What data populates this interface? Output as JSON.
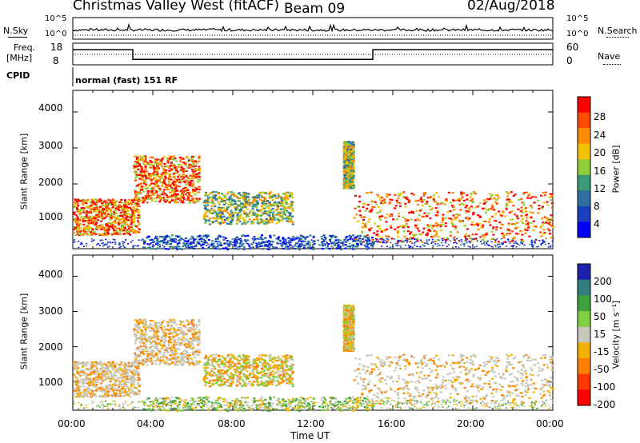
{
  "header": {
    "station": "Christmas Valley West (fitACF)",
    "beam": "Beam 09",
    "date": "02/Aug/2018"
  },
  "panel_labels": {
    "nsky": "N.Sky",
    "nsky_ticks": [
      "10^5",
      "10^0"
    ],
    "nsearch": "N.Search",
    "nsearch_ticks": [
      "10^5",
      "10^0"
    ],
    "freq": "Freq.",
    "freq_unit": "[MHz]",
    "freq_ticks": [
      "18",
      "8"
    ],
    "nave": "Nave",
    "nave_ticks": [
      "60",
      "0"
    ],
    "cpid": "CPID",
    "cpid_text": "normal (fast) 151 RF"
  },
  "colorbars": {
    "power": {
      "label": "Power [dB]",
      "ticks": [
        "28",
        "24",
        "20",
        "16",
        "12",
        "8",
        "4"
      ],
      "colors": [
        "#ff0000",
        "#ff4a00",
        "#ff8c00",
        "#f2c200",
        "#8fcf3c",
        "#3c9a7a",
        "#2f6fa0",
        "#1a3fbf",
        "#0000ff"
      ]
    },
    "velocity": {
      "label": "Velocity [m s⁻¹]",
      "ticks": [
        "200",
        "100",
        "50",
        "15",
        "-15",
        "-50",
        "-100",
        "-200"
      ],
      "colors": [
        "#2020b0",
        "#2f7f7f",
        "#3fa23f",
        "#7fcf3f",
        "#c8c8bc",
        "#f2b000",
        "#ff7f00",
        "#ff3a00",
        "#ff0000"
      ]
    }
  },
  "chart_data": [
    {
      "type": "line",
      "name": "N.Sky / N.Search / Frequency / Nave",
      "freq_profile_mhz": [
        [
          0,
          15
        ],
        [
          3.0,
          15
        ],
        [
          3.0,
          10.5
        ],
        [
          15.0,
          10.5
        ],
        [
          15.0,
          15
        ],
        [
          24,
          15
        ]
      ],
      "freq_ylim": [
        8,
        18
      ],
      "nave_ylim": [
        0,
        60
      ]
    },
    {
      "type": "heatmap",
      "quantity": "Power",
      "xlabel": "",
      "ylabel": "Slant Range [km]",
      "xlim_hours": [
        0,
        24
      ],
      "ylim_km": [
        200,
        4600
      ],
      "x_ticks": [
        "00:00",
        "04:00",
        "08:00",
        "12:00",
        "16:00",
        "20:00",
        "00:00"
      ],
      "y_ticks": [
        1000,
        2000,
        3000,
        4000
      ],
      "scatter_regions": [
        {
          "t": [
            0.0,
            3.3
          ],
          "r": [
            600,
            1600
          ],
          "level": "high"
        },
        {
          "t": [
            3.0,
            6.3
          ],
          "r": [
            1500,
            2800
          ],
          "level": "high"
        },
        {
          "t": [
            6.5,
            11.0
          ],
          "r": [
            900,
            1800
          ],
          "level": "mid"
        },
        {
          "t": [
            13.5,
            14.0
          ],
          "r": [
            1900,
            3200
          ],
          "level": "mid"
        },
        {
          "t": [
            14.0,
            24.0
          ],
          "r": [
            400,
            1800
          ],
          "level": "high"
        },
        {
          "t": [
            3.5,
            15.0
          ],
          "r": [
            200,
            600
          ],
          "level": "low"
        }
      ]
    },
    {
      "type": "heatmap",
      "quantity": "Velocity",
      "xlabel": "Time UT",
      "ylabel": "Slant Range [km]",
      "xlim_hours": [
        0,
        24
      ],
      "ylim_km": [
        200,
        4600
      ],
      "x_ticks": [
        "00:00",
        "04:00",
        "08:00",
        "12:00",
        "16:00",
        "20:00",
        "00:00"
      ],
      "y_ticks": [
        1000,
        2000,
        3000,
        4000
      ]
    }
  ]
}
